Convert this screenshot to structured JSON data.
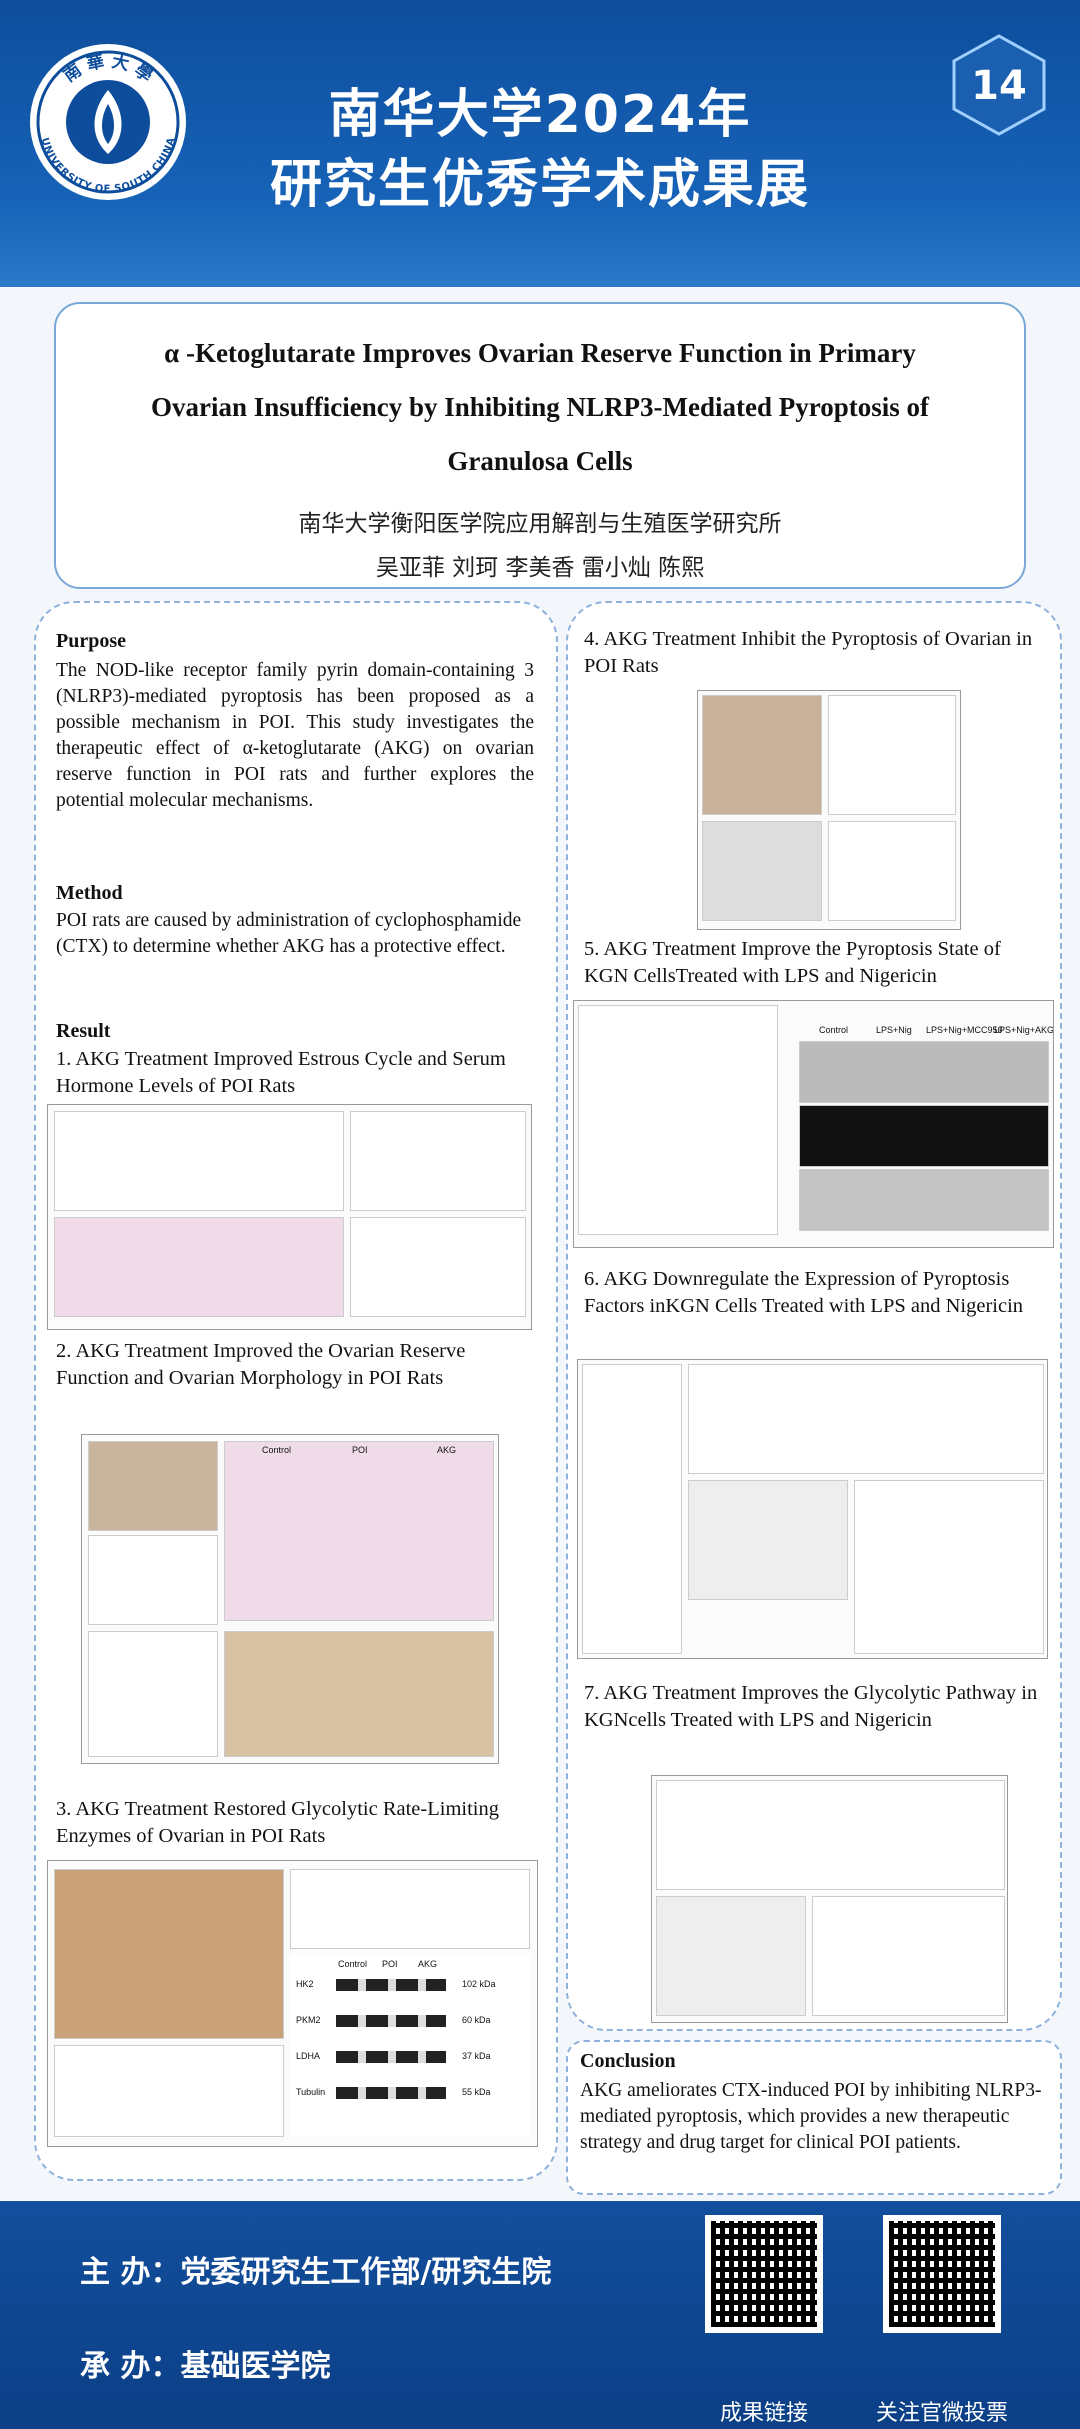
{
  "header": {
    "title_line1": "南华大学2024年",
    "title_line2": "研究生优秀学术成果展",
    "badge": "14",
    "logo_cn": "南 華 大 學",
    "logo_en": "UNIVERSITY OF SOUTH CHINA"
  },
  "paper": {
    "title_line1": "α -Ketoglutarate Improves Ovarian Reserve Function in Primary",
    "title_line2": "Ovarian Insufficiency by Inhibiting NLRP3-Mediated Pyroptosis of",
    "title_line3": "Granulosa Cells",
    "affiliation": "南华大学衡阳医学院应用解剖与生殖医学研究所",
    "authors": "吴亚菲  刘珂  李美香  雷小灿  陈熙"
  },
  "left": {
    "purpose_heading": "Purpose",
    "purpose_text": "The NOD-like receptor family pyrin domain-containing 3 (NLRP3)-mediated pyroptosis has been proposed as a possible mechanism in POI. This study investigates the therapeutic effect of α-ketoglutarate (AKG) on ovarian reserve function in POI rats and further explores the potential molecular mechanisms.",
    "method_heading": "Method",
    "method_text": "POI rats are caused by administration of cyclophosphamide (CTX) to determine whether AKG has a protective effect.",
    "result_heading": "Result",
    "sections": [
      {
        "heading": "1. AKG Treatment Improved Estrous Cycle and Serum Hormone Levels of POI Rats"
      },
      {
        "heading": "2. AKG Treatment Improved the Ovarian Reserve Function and Ovarian Morphology in POI Rats",
        "groups": [
          "Control",
          "POI",
          "AKG"
        ]
      },
      {
        "heading": "3. AKG Treatment Restored Glycolytic Rate-Limiting Enzymes of Ovarian in POI Rats",
        "groups": [
          "Control",
          "POI",
          "AKG"
        ],
        "proteins": [
          "HK2",
          "PKM2",
          "LDHA",
          "Tubulin"
        ],
        "sizes": [
          "102 kDa",
          "60 kDa",
          "37 kDa",
          "55 kDa"
        ]
      }
    ]
  },
  "right": {
    "sections": [
      {
        "heading": "4. AKG Treatment Inhibit the Pyroptosis of Ovarian in POI Rats"
      },
      {
        "heading": "5. AKG Treatment Improve the Pyroptosis State of KGN CellsTreated with LPS and Nigericin",
        "groups": [
          "Control",
          "LPS+Nig",
          "LPS+Nig+MCC950",
          "LPS+Nig+AKG"
        ]
      },
      {
        "heading": "6. AKG Downregulate the Expression of Pyroptosis Factors inKGN Cells Treated with LPS and Nigericin"
      },
      {
        "heading": "7. AKG Treatment Improves the Glycolytic Pathway in KGNcells Treated with LPS and Nigericin"
      }
    ]
  },
  "conclusion": {
    "heading": "Conclusion",
    "text": "AKG ameliorates CTX-induced POI by inhibiting NLRP3-mediated pyroptosis, which provides a new therapeutic strategy and drug target for clinical POI patients."
  },
  "footer": {
    "host": "主 办：党委研究生工作部/研究生院",
    "organizer": "承 办：基础医学院",
    "qr1_label": "成果链接",
    "qr2_label": "关注官微投票"
  }
}
